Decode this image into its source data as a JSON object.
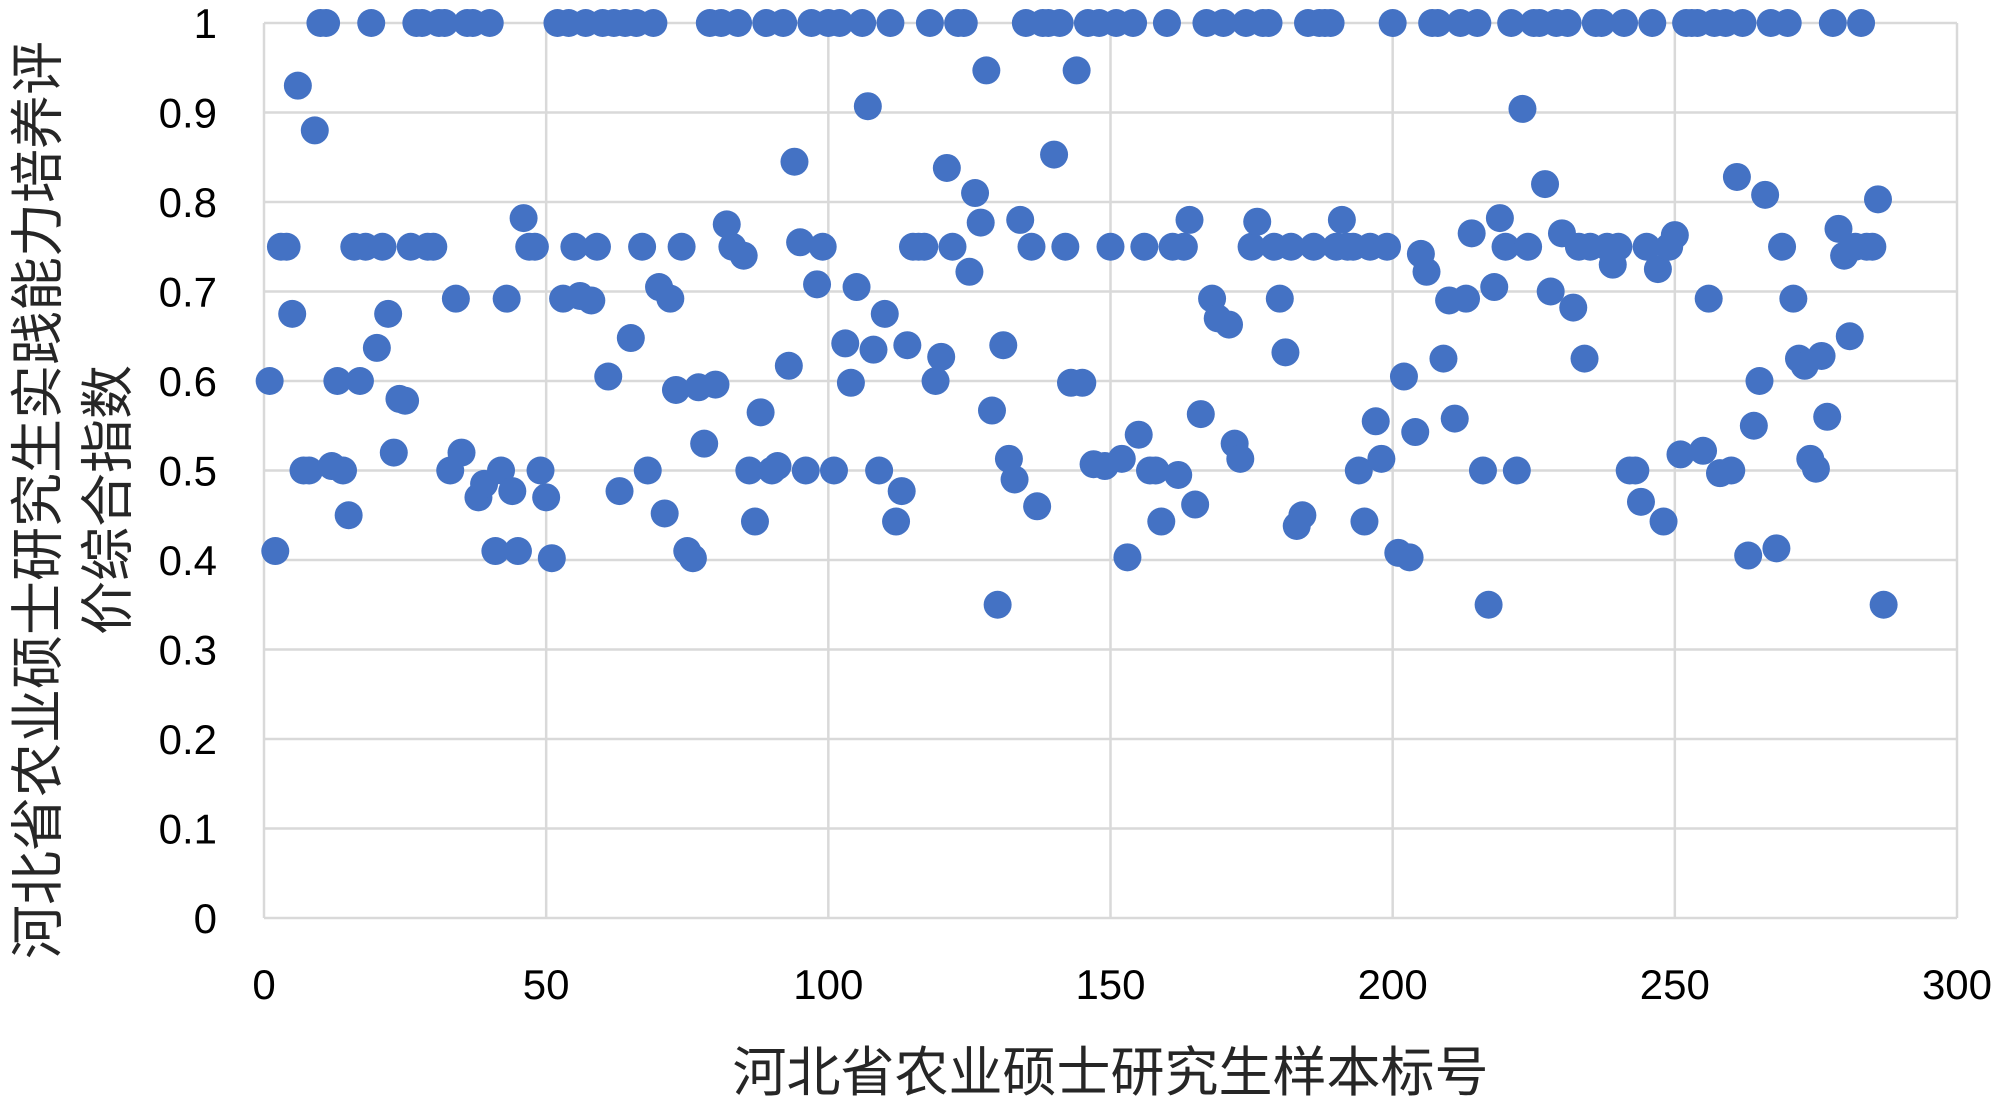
{
  "chart_data": {
    "type": "scatter",
    "xlabel": "河北省农业硕士研究生样本标号",
    "ylabel": "河北省农业硕士研究生实践能力培养评价综合指数",
    "xlim": [
      0,
      300
    ],
    "ylim": [
      0,
      1
    ],
    "xticks": [
      "0",
      "50",
      "100",
      "150",
      "200",
      "250",
      "300"
    ],
    "yticks": [
      "0",
      "0.1",
      "0.2",
      "0.3",
      "0.4",
      "0.5",
      "0.6",
      "0.7",
      "0.8",
      "0.9",
      "1"
    ],
    "grid": true,
    "legend": "none",
    "colors": {
      "marker": "#4472C4",
      "grid": "#D9D9D9",
      "text": "#000000"
    },
    "x": [
      1,
      2,
      3,
      4,
      5,
      6,
      7,
      8,
      9,
      10,
      11,
      12,
      13,
      14,
      15,
      16,
      17,
      18,
      19,
      20,
      21,
      22,
      23,
      24,
      25,
      26,
      27,
      28,
      29,
      30,
      31,
      32,
      33,
      34,
      35,
      36,
      37,
      38,
      39,
      40,
      41,
      42,
      43,
      44,
      45,
      46,
      47,
      48,
      49,
      50,
      51,
      52,
      53,
      54,
      55,
      56,
      57,
      58,
      59,
      60,
      61,
      62,
      63,
      64,
      65,
      66,
      67,
      68,
      69,
      70,
      71,
      72,
      73,
      74,
      75,
      76,
      77,
      78,
      79,
      80,
      81,
      82,
      83,
      84,
      85,
      86,
      87,
      88,
      89,
      90,
      91,
      92,
      93,
      94,
      95,
      96,
      97,
      98,
      99,
      100,
      101,
      102,
      103,
      104,
      105,
      106,
      107,
      108,
      109,
      110,
      111,
      112,
      113,
      114,
      115,
      116,
      117,
      118,
      119,
      120,
      121,
      122,
      123,
      124,
      125,
      126,
      127,
      128,
      129,
      130,
      131,
      132,
      133,
      134,
      135,
      136,
      137,
      138,
      139,
      140,
      141,
      142,
      143,
      144,
      145,
      146,
      147,
      148,
      149,
      150,
      151,
      152,
      153,
      154,
      155,
      156,
      157,
      158,
      159,
      160,
      161,
      162,
      163,
      164,
      165,
      166,
      167,
      168,
      169,
      170,
      171,
      172,
      173,
      174,
      175,
      176,
      177,
      178,
      179,
      180,
      181,
      182,
      183,
      184,
      185,
      186,
      187,
      188,
      189,
      190,
      191,
      192,
      193,
      194,
      195,
      196,
      197,
      198,
      199,
      200,
      201,
      202,
      203,
      204,
      205,
      206,
      207,
      208,
      209,
      210,
      211,
      212,
      213,
      214,
      215,
      216,
      217,
      218,
      219,
      220,
      221,
      222,
      223,
      224,
      225,
      226,
      227,
      228,
      229,
      230,
      231,
      232,
      233,
      234,
      235,
      236,
      237,
      238,
      239,
      240,
      241,
      242,
      243,
      244,
      245,
      246,
      247,
      248,
      249,
      250,
      251,
      252,
      253,
      254,
      255,
      256,
      257,
      258,
      259,
      260,
      261,
      262,
      263,
      264,
      265,
      266,
      267,
      268,
      269,
      270,
      271,
      272,
      273,
      274,
      275,
      276,
      277,
      278,
      279,
      280,
      281,
      282,
      283,
      284,
      285,
      286,
      287
    ],
    "y": [
      0.6,
      0.41,
      0.75,
      0.75,
      0.675,
      0.93,
      0.5,
      0.5,
      0.88,
      1,
      1,
      0.505,
      0.6,
      0.5,
      0.45,
      0.75,
      0.6,
      0.75,
      1,
      0.637,
      0.75,
      0.675,
      0.52,
      0.58,
      0.578,
      0.75,
      1,
      1,
      0.75,
      0.75,
      1,
      1,
      0.5,
      0.692,
      0.52,
      1,
      1,
      0.47,
      0.485,
      1,
      0.41,
      0.5,
      0.692,
      0.477,
      0.41,
      0.782,
      0.75,
      0.75,
      0.5,
      0.47,
      0.402,
      1,
      0.692,
      1,
      0.75,
      0.695,
      1,
      0.69,
      0.75,
      1,
      0.605,
      1,
      0.477,
      1,
      0.648,
      1,
      0.75,
      0.5,
      1,
      0.705,
      0.452,
      0.692,
      0.59,
      0.75,
      0.41,
      0.402,
      0.593,
      0.53,
      1,
      0.596,
      1,
      0.775,
      0.75,
      1,
      0.74,
      0.5,
      0.443,
      0.565,
      1,
      0.5,
      0.505,
      1,
      0.617,
      0.845,
      0.755,
      0.5,
      1,
      0.708,
      0.75,
      1,
      0.5,
      1,
      0.642,
      0.598,
      0.705,
      1,
      0.907,
      0.635,
      0.5,
      0.675,
      1,
      0.443,
      0.477,
      0.64,
      0.75,
      0.75,
      0.75,
      1,
      0.6,
      0.627,
      0.838,
      0.75,
      1,
      1,
      0.722,
      0.81,
      0.777,
      0.947,
      0.567,
      0.35,
      0.64,
      0.513,
      0.49,
      0.78,
      1,
      0.75,
      0.46,
      1,
      1,
      0.853,
      1,
      0.75,
      0.598,
      0.947,
      0.598,
      1,
      0.507,
      1,
      0.505,
      0.75,
      1,
      0.513,
      0.403,
      1,
      0.54,
      0.75,
      0.5,
      0.5,
      0.443,
      1,
      0.75,
      0.495,
      0.75,
      0.78,
      0.462,
      0.563,
      1,
      0.692,
      0.67,
      1,
      0.663,
      0.53,
      0.513,
      1,
      0.75,
      0.778,
      1,
      1,
      0.75,
      0.692,
      0.632,
      0.75,
      0.438,
      0.45,
      1,
      0.75,
      1,
      1,
      1,
      0.75,
      0.78,
      0.75,
      0.75,
      0.5,
      0.443,
      0.75,
      0.555,
      0.513,
      0.75,
      1,
      0.408,
      0.605,
      0.403,
      0.543,
      0.742,
      0.722,
      1,
      1,
      0.625,
      0.69,
      0.558,
      1,
      0.692,
      0.765,
      1,
      0.5,
      0.35,
      0.705,
      0.782,
      0.75,
      1,
      0.5,
      0.904,
      0.75,
      1,
      1,
      0.82,
      0.7,
      1,
      0.765,
      1,
      0.682,
      0.75,
      0.625,
      0.75,
      1,
      1,
      0.75,
      0.73,
      0.75,
      1,
      0.5,
      0.5,
      0.465,
      0.75,
      1,
      0.725,
      0.443,
      0.75,
      0.763,
      0.518,
      1,
      1,
      1,
      0.522,
      0.692,
      1,
      0.497,
      1,
      0.5,
      0.828,
      1,
      0.405,
      0.55,
      0.6,
      0.808,
      1,
      0.413,
      0.75,
      1,
      0.692,
      0.625,
      0.617,
      0.513,
      0.502,
      0.628,
      0.56,
      1,
      0.77,
      0.74,
      0.65,
      0.75,
      1,
      0.75,
      0.75,
      0.803,
      0.35
    ]
  }
}
